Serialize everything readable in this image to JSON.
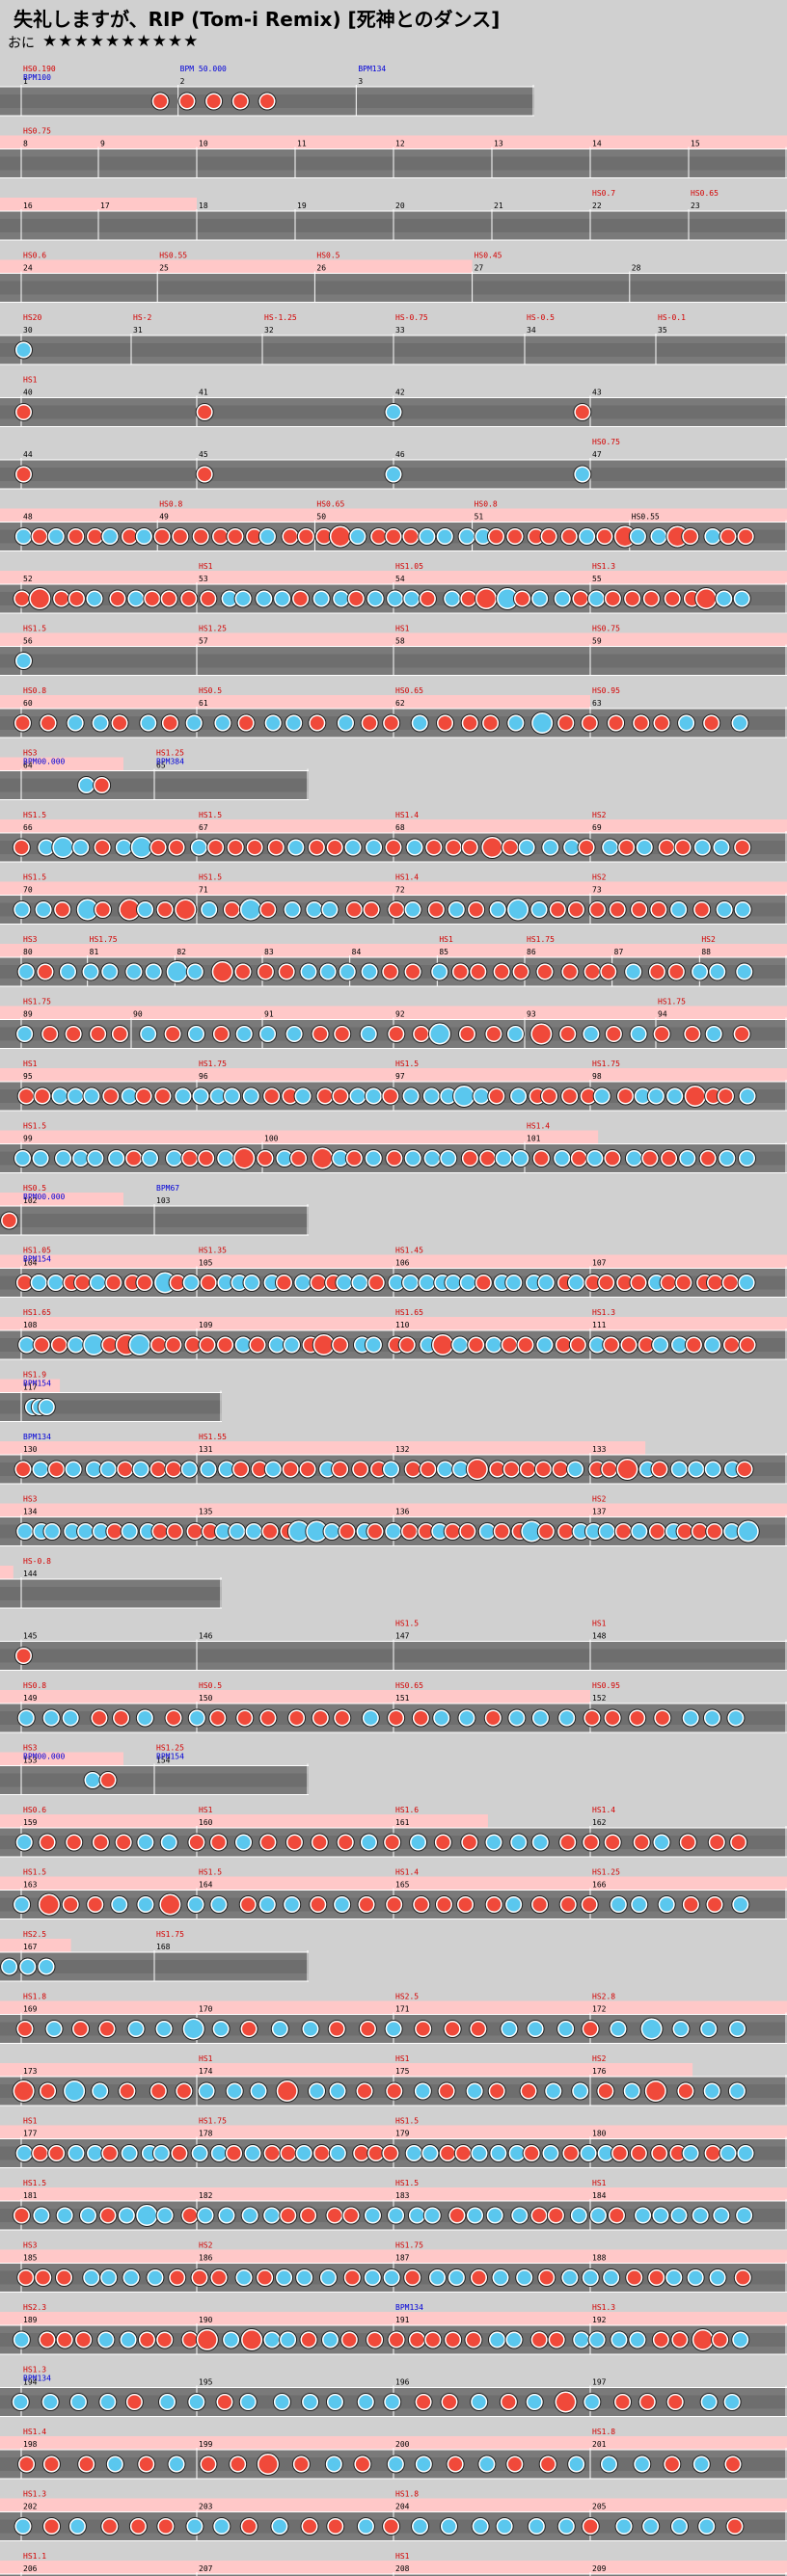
{
  "header": {
    "title": "失礼しますが、RIP (Tom-i Remix) [死神とのダンス]",
    "difficulty_label": "おに",
    "difficulty_stars": "★★★★★★★★★★"
  },
  "colors": {
    "background": "#d0d0d0",
    "lane": "#7a7a7a",
    "lane_band": "#6e6e6e",
    "scroll_band": "#ffc8c8",
    "don": "#f0493a",
    "ka": "#5ac7ee",
    "roll": "#ffd21e",
    "scroll_text": "#d40000",
    "bpm_text": "#0000d8"
  },
  "rows": [
    {
      "measures": [
        {
          "n": "1",
          "bpm": "BPM100",
          "scroll": "HS0.190"
        },
        {
          "n": "2",
          "bpm": "BPM 50.000"
        },
        {
          "n": "3",
          "bpm": "BPM134"
        }
      ],
      "scroll_band": 0,
      "notes": [
        [
          0.3,
          1
        ],
        [
          0.35,
          1
        ],
        [
          0.4,
          1
        ],
        [
          0.45,
          1
        ],
        [
          0.5,
          1
        ]
      ]
    },
    {
      "measures": [
        {
          "n": "8",
          "scroll": "HS0.75"
        },
        {
          "n": "9"
        },
        {
          "n": "10"
        },
        {
          "n": "11"
        },
        {
          "n": "12"
        },
        {
          "n": "13"
        },
        {
          "n": "14"
        },
        {
          "n": "15"
        }
      ],
      "scroll_band": 1,
      "notes": []
    },
    {
      "measures": [
        {
          "n": "16"
        },
        {
          "n": "17"
        },
        {
          "n": "18"
        },
        {
          "n": "19"
        },
        {
          "n": "20"
        },
        {
          "n": "21"
        },
        {
          "n": "22",
          "scroll": "HS0.7"
        },
        {
          "n": "23",
          "scroll": "HS0.65"
        }
      ],
      "scroll_band": 0.25,
      "notes": []
    },
    {
      "measures": [
        {
          "n": "24",
          "scroll": "HS0.6"
        },
        {
          "n": "25",
          "scroll": "HS0.55"
        },
        {
          "n": "26",
          "scroll": "HS0.5"
        },
        {
          "n": "27",
          "scroll": "HS0.45"
        },
        {
          "n": "28"
        }
      ],
      "scroll_band": 0.6,
      "notes": []
    },
    {
      "measures": [
        {
          "n": "30",
          "scroll": "HS20"
        },
        {
          "n": "31",
          "scroll": "HS-2"
        },
        {
          "n": "32",
          "scroll": "HS-1.25"
        },
        {
          "n": "33",
          "scroll": "HS-0.75"
        },
        {
          "n": "34",
          "scroll": "HS-0.5"
        },
        {
          "n": "35",
          "scroll": "HS-0.1"
        }
      ],
      "scroll_band": 0,
      "notes": [
        [
          0.03,
          2
        ]
      ]
    },
    {
      "measures": [
        {
          "n": "40",
          "scroll": "HS1"
        },
        {
          "n": "41"
        },
        {
          "n": "42"
        },
        {
          "n": "43"
        }
      ],
      "scroll_band": 0,
      "notes": [
        [
          0.03,
          1
        ],
        [
          0.26,
          1
        ],
        [
          0.5,
          2
        ],
        [
          0.74,
          1
        ]
      ]
    },
    {
      "measures": [
        {
          "n": "44"
        },
        {
          "n": "45"
        },
        {
          "n": "46"
        },
        {
          "n": "47",
          "scroll": "HS0.75"
        }
      ],
      "scroll_band": 0,
      "notes": [
        [
          0.03,
          1
        ],
        [
          0.26,
          1
        ],
        [
          0.5,
          2
        ],
        [
          0.74,
          2
        ]
      ]
    },
    {
      "measures": [
        {
          "n": "48"
        },
        {
          "n": "49",
          "scroll": "HS0.8"
        },
        {
          "n": "50",
          "scroll": "HS0.65"
        },
        {
          "n": "51",
          "scroll": "HS0.8"
        },
        {
          "n": "HS0.55"
        }
      ],
      "scroll_band": 1,
      "dense": 42
    },
    {
      "measures": [
        {
          "n": "52"
        },
        {
          "n": "53",
          "scroll": "HS1"
        },
        {
          "n": "54",
          "scroll": "HS1.05"
        },
        {
          "n": "55",
          "scroll": "HS1.3"
        }
      ],
      "scroll_band": 1,
      "dense": 40
    },
    {
      "measures": [
        {
          "n": "56",
          "scroll": "HS1.5"
        },
        {
          "n": "57",
          "scroll": "HS1.25"
        },
        {
          "n": "58",
          "scroll": "HS1"
        },
        {
          "n": "59",
          "scroll": "HS0.75"
        }
      ],
      "scroll_band": 1,
      "notes": [
        [
          0.03,
          2
        ]
      ]
    },
    {
      "measures": [
        {
          "n": "60",
          "scroll": "HS0.8"
        },
        {
          "n": "61",
          "scroll": "HS0.5"
        },
        {
          "n": "62",
          "scroll": "HS0.65"
        },
        {
          "n": "63",
          "scroll": "HS0.95"
        }
      ],
      "scroll_band": 0.75,
      "dense": 30
    },
    {
      "measures": [
        {
          "n": "64",
          "bpm": "BPM00.000",
          "scroll": "HS3"
        },
        {
          "n": "65",
          "bpm": "BPM384",
          "scroll": "HS1.25"
        }
      ],
      "scroll_band": 0.4,
      "notes": [
        [
          0.28,
          2
        ],
        [
          0.33,
          1
        ]
      ]
    },
    {
      "measures": [
        {
          "n": "66",
          "scroll": "HS1.5"
        },
        {
          "n": "67",
          "scroll": "HS1.5"
        },
        {
          "n": "68",
          "scroll": "HS1.4"
        },
        {
          "n": "69",
          "scroll": "HS2"
        }
      ],
      "scroll_band": 1,
      "dense": 38
    },
    {
      "measures": [
        {
          "n": "70",
          "scroll": "HS1.5"
        },
        {
          "n": "71",
          "scroll": "HS1.5"
        },
        {
          "n": "72",
          "scroll": "HS1.4"
        },
        {
          "n": "73",
          "scroll": "HS2"
        }
      ],
      "scroll_band": 1,
      "dense": 36
    },
    {
      "measures": [
        {
          "n": "80",
          "scroll": "HS3"
        },
        {
          "n": "81",
          "scroll": "HS1.75"
        },
        {
          "n": "82"
        },
        {
          "n": "83"
        },
        {
          "n": "84"
        },
        {
          "n": "85",
          "scroll": "HS1"
        },
        {
          "n": "86",
          "scroll": "HS1.75"
        },
        {
          "n": "87"
        },
        {
          "n": "88",
          "scroll": "HS2"
        }
      ],
      "scroll_band": 1,
      "dense": 34
    },
    {
      "measures": [
        {
          "n": "89",
          "scroll": "HS1.75"
        },
        {
          "n": "90"
        },
        {
          "n": "91"
        },
        {
          "n": "92"
        },
        {
          "n": "93"
        },
        {
          "n": "94",
          "scroll": "HS1.75"
        }
      ],
      "scroll_band": 1,
      "dense": 30
    },
    {
      "measures": [
        {
          "n": "95",
          "scroll": "HS1"
        },
        {
          "n": "96",
          "scroll": "HS1.75"
        },
        {
          "n": "97",
          "scroll": "HS1.5"
        },
        {
          "n": "98",
          "scroll": "HS1.75"
        }
      ],
      "scroll_band": 1,
      "dense": 42
    },
    {
      "measures": [
        {
          "n": "99",
          "scroll": "HS1.5"
        },
        {
          "n": "100"
        },
        {
          "n": "101",
          "scroll": "HS1.4"
        }
      ],
      "scroll_band": 0.76,
      "dense": 40
    },
    {
      "measures": [
        {
          "n": "102",
          "bpm": "BPM00.000",
          "scroll": "HS0.5"
        },
        {
          "n": "103",
          "bpm": "BPM67"
        }
      ],
      "scroll_band": 0.4,
      "notes": [
        [
          0.03,
          1
        ]
      ]
    },
    {
      "measures": [
        {
          "n": "104",
          "bpm": "BPM154",
          "scroll": "HS1.05"
        },
        {
          "n": "105",
          "scroll": "HS1.35"
        },
        {
          "n": "106",
          "scroll": "HS1.45"
        },
        {
          "n": "107"
        }
      ],
      "scroll_band": 1,
      "dense": 48
    },
    {
      "measures": [
        {
          "n": "108",
          "scroll": "HS1.65"
        },
        {
          "n": "109"
        },
        {
          "n": "110",
          "scroll": "HS1.65"
        },
        {
          "n": "111",
          "scroll": "HS1.3"
        }
      ],
      "scroll_band": 1,
      "dense": 44
    },
    {
      "measures": [
        {
          "n": "117",
          "bpm": "BPM154",
          "scroll": "HS1.9"
        }
      ],
      "scroll_band": 0.27,
      "notes": [
        [
          0.15,
          2
        ],
        [
          0.18,
          2
        ],
        [
          0.21,
          2
        ]
      ]
    },
    {
      "measures": [
        {
          "n": "130",
          "bpm": "BPM134"
        },
        {
          "n": "131",
          "scroll": "HS1.55"
        },
        {
          "n": "132"
        },
        {
          "n": "133"
        }
      ],
      "scroll_band": 0.82,
      "dense": 44
    },
    {
      "measures": [
        {
          "n": "134",
          "scroll": "HS3"
        },
        {
          "n": "135"
        },
        {
          "n": "136"
        },
        {
          "n": "137",
          "scroll": "HS2"
        }
      ],
      "scroll_band": 1,
      "dense": 48
    },
    {
      "measures": [
        {
          "n": "144",
          "scroll": "HS-0.8"
        }
      ],
      "scroll_band": 0.06,
      "notes": []
    },
    {
      "measures": [
        {
          "n": "145"
        },
        {
          "n": "146"
        },
        {
          "n": "147",
          "scroll": "HS1.5"
        },
        {
          "n": "148",
          "scroll": "HS1"
        }
      ],
      "scroll_band": 0,
      "notes": [
        [
          0.03,
          1
        ]
      ]
    },
    {
      "measures": [
        {
          "n": "149",
          "scroll": "HS0.8"
        },
        {
          "n": "150",
          "scroll": "HS0.5"
        },
        {
          "n": "151",
          "scroll": "HS0.65"
        },
        {
          "n": "152",
          "scroll": "HS0.95"
        }
      ],
      "scroll_band": 0.75,
      "dense": 30
    },
    {
      "measures": [
        {
          "n": "153",
          "bpm": "BPM00.000",
          "scroll": "HS3"
        },
        {
          "n": "154",
          "bpm": "BPM154",
          "scroll": "HS1.25"
        }
      ],
      "scroll_band": 0.4,
      "notes": [
        [
          0.3,
          2
        ],
        [
          0.35,
          1
        ]
      ]
    },
    {
      "measures": [
        {
          "n": "159",
          "scroll": "HS0.6"
        },
        {
          "n": "160",
          "scroll": "HS1"
        },
        {
          "n": "161",
          "scroll": "HS1.6"
        },
        {
          "n": "162",
          "scroll": "HS1.4"
        }
      ],
      "scroll_band": 0.62,
      "dense": 30
    },
    {
      "measures": [
        {
          "n": "163",
          "scroll": "HS1.5"
        },
        {
          "n": "164",
          "scroll": "HS1.5"
        },
        {
          "n": "165",
          "scroll": "HS1.4"
        },
        {
          "n": "166",
          "scroll": "HS1.25"
        }
      ],
      "scroll_band": 1,
      "dense": 30
    },
    {
      "measures": [
        {
          "n": "167",
          "scroll": "HS2.5"
        },
        {
          "n": "168",
          "scroll": "HS1.75"
        }
      ],
      "scroll_band": 0.23,
      "notes": [
        [
          0.03,
          2
        ],
        [
          0.09,
          2
        ],
        [
          0.15,
          2
        ]
      ]
    },
    {
      "measures": [
        {
          "n": "169",
          "scroll": "HS1.8"
        },
        {
          "n": "170"
        },
        {
          "n": "171",
          "scroll": "HS2.5"
        },
        {
          "n": "172",
          "scroll": "HS2.8"
        }
      ],
      "scroll_band": 1,
      "dense": 26
    },
    {
      "measures": [
        {
          "n": "173"
        },
        {
          "n": "174",
          "scroll": "HS1"
        },
        {
          "n": "175",
          "scroll": "HS1"
        },
        {
          "n": "176",
          "scroll": "HS2"
        }
      ],
      "scroll_band": 0.88,
      "dense": 28
    },
    {
      "measures": [
        {
          "n": "177",
          "scroll": "HS1"
        },
        {
          "n": "178",
          "scroll": "HS1.75"
        },
        {
          "n": "179",
          "scroll": "HS1.5"
        },
        {
          "n": "180"
        }
      ],
      "scroll_band": 1,
      "dense": 42
    },
    {
      "measures": [
        {
          "n": "181",
          "scroll": "HS1.5"
        },
        {
          "n": "182"
        },
        {
          "n": "183",
          "scroll": "HS1.5"
        },
        {
          "n": "184",
          "scroll": "HS1"
        }
      ],
      "scroll_band": 1,
      "dense": 36
    },
    {
      "measures": [
        {
          "n": "185",
          "scroll": "HS3"
        },
        {
          "n": "186",
          "scroll": "HS2"
        },
        {
          "n": "187",
          "scroll": "HS1.75"
        },
        {
          "n": "188"
        }
      ],
      "scroll_band": 1,
      "dense": 34
    },
    {
      "measures": [
        {
          "n": "189",
          "scroll": "HS2.3"
        },
        {
          "n": "190"
        },
        {
          "n": "191",
          "bpm": "BPM134"
        },
        {
          "n": "192",
          "scroll": "HS1.3"
        }
      ],
      "scroll_band": 1,
      "dense": 36
    },
    {
      "measures": [
        {
          "n": "194",
          "bpm": "BPM134",
          "scroll": "HS1.3"
        },
        {
          "n": "195"
        },
        {
          "n": "196"
        },
        {
          "n": "197"
        }
      ],
      "scroll_band": 0,
      "dense": 26
    },
    {
      "measures": [
        {
          "n": "198",
          "scroll": "HS1.4"
        },
        {
          "n": "199"
        },
        {
          "n": "200"
        },
        {
          "n": "201",
          "scroll": "HS1.8"
        }
      ],
      "scroll_band": 1,
      "dense": 24
    },
    {
      "measures": [
        {
          "n": "202",
          "scroll": "HS1.3"
        },
        {
          "n": "203"
        },
        {
          "n": "204",
          "scroll": "HS1.8"
        },
        {
          "n": "205"
        }
      ],
      "scroll_band": 1,
      "dense": 26
    },
    {
      "measures": [
        {
          "n": "206",
          "scroll": "HS1.1"
        },
        {
          "n": "207"
        },
        {
          "n": "208",
          "scroll": "HS1"
        },
        {
          "n": "209"
        }
      ],
      "scroll_band": 1,
      "dense": 30
    }
  ]
}
